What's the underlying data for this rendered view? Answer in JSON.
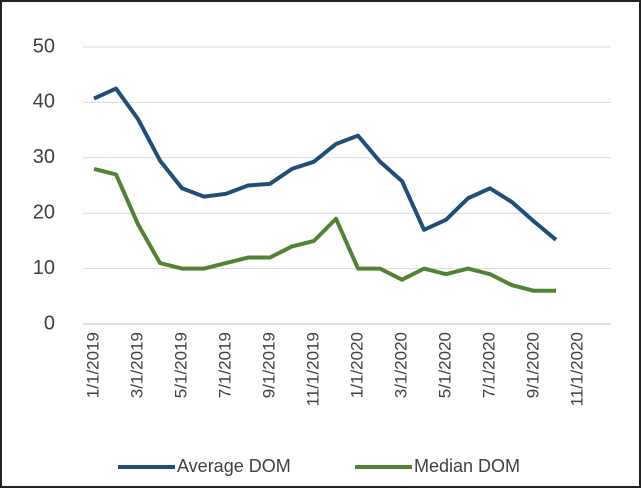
{
  "chart_data": {
    "type": "line",
    "categories": [
      "1/1/2019",
      null,
      "3/1/2019",
      null,
      "5/1/2019",
      null,
      "7/1/2019",
      null,
      "9/1/2019",
      null,
      "11/1/2019",
      null,
      "1/1/2020",
      null,
      "3/1/2020",
      null,
      "5/1/2020",
      null,
      "7/1/2020",
      null,
      "9/1/2020",
      null,
      "11/1/2020",
      null
    ],
    "series": [
      {
        "name": "Average DOM",
        "color": "#1f4e79",
        "values": [
          40.7,
          42.5,
          37,
          29.5,
          24.5,
          23,
          23.5,
          25,
          25.3,
          28,
          29.3,
          32.5,
          34,
          29.3,
          25.8,
          17,
          18.8,
          22.7,
          24.5,
          22,
          18.5,
          15.2,
          null,
          null
        ]
      },
      {
        "name": "Median DOM",
        "color": "#548235",
        "values": [
          28,
          27,
          18,
          11,
          10,
          10,
          11,
          12,
          12,
          14,
          15,
          19,
          10,
          10,
          8,
          10,
          9,
          10,
          9,
          7,
          6,
          6,
          null,
          null
        ]
      }
    ],
    "ylim": [
      0,
      50
    ],
    "yticks": [
      0,
      10,
      20,
      30,
      40,
      50
    ],
    "grid": true,
    "legend": "bottom"
  }
}
